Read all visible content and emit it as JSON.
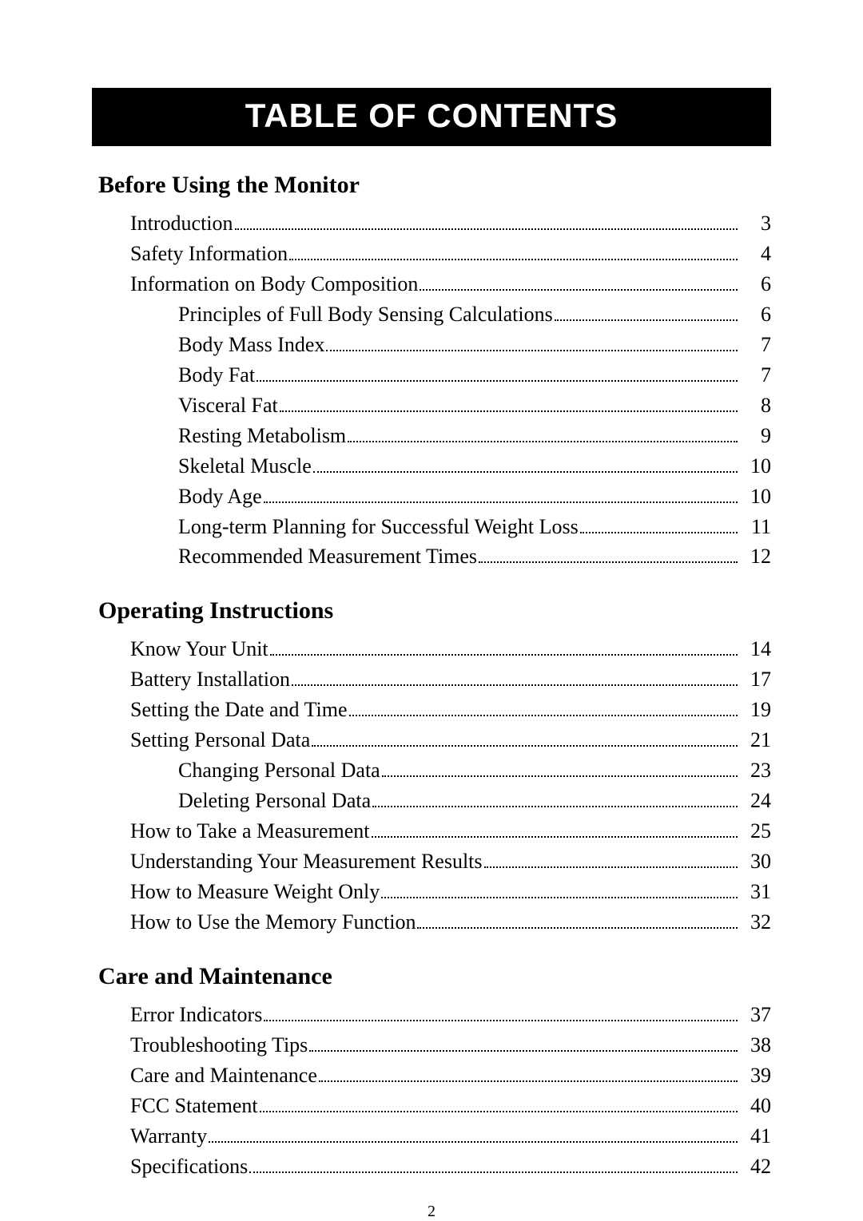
{
  "title": "TABLE OF CONTENTS",
  "page_number": "2",
  "sections": [
    {
      "heading": "Before Using the Monitor",
      "entries": [
        {
          "label": "Introduction",
          "page": "3",
          "indent": false
        },
        {
          "label": "Safety Information",
          "page": "4",
          "indent": false
        },
        {
          "label": "Information on Body Composition",
          "page": "6",
          "indent": false
        },
        {
          "label": "Principles of Full Body Sensing Calculations",
          "page": "6",
          "indent": true
        },
        {
          "label": "Body Mass Index",
          "page": "7",
          "indent": true
        },
        {
          "label": "Body Fat",
          "page": "7",
          "indent": true
        },
        {
          "label": "Visceral Fat",
          "page": "8",
          "indent": true
        },
        {
          "label": "Resting Metabolism",
          "page": "9",
          "indent": true
        },
        {
          "label": "Skeletal Muscle",
          "page": "10",
          "indent": true
        },
        {
          "label": "Body Age",
          "page": "10",
          "indent": true
        },
        {
          "label": "Long-term Planning for Successful Weight Loss",
          "page": "11",
          "indent": true
        },
        {
          "label": "Recommended Measurement Times",
          "page": "12",
          "indent": true
        }
      ]
    },
    {
      "heading": "Operating Instructions",
      "entries": [
        {
          "label": "Know Your Unit",
          "page": "14",
          "indent": false
        },
        {
          "label": "Battery Installation",
          "page": "17",
          "indent": false
        },
        {
          "label": "Setting the Date and Time",
          "page": "19",
          "indent": false
        },
        {
          "label": "Setting Personal Data",
          "page": "21",
          "indent": false
        },
        {
          "label": "Changing Personal Data",
          "page": "23",
          "indent": true
        },
        {
          "label": "Deleting Personal Data",
          "page": "24",
          "indent": true
        },
        {
          "label": "How to Take a Measurement",
          "page": "25",
          "indent": false
        },
        {
          "label": "Understanding Your Measurement Results",
          "page": "30",
          "indent": false
        },
        {
          "label": "How to Measure Weight Only",
          "page": "31",
          "indent": false
        },
        {
          "label": "How to Use the Memory Function",
          "page": "32",
          "indent": false
        }
      ]
    },
    {
      "heading": "Care and Maintenance",
      "entries": [
        {
          "label": "Error Indicators",
          "page": "37",
          "indent": false
        },
        {
          "label": "Troubleshooting Tips",
          "page": "38",
          "indent": false
        },
        {
          "label": "Care and Maintenance",
          "page": "39",
          "indent": false
        },
        {
          "label": "FCC Statement",
          "page": "40",
          "indent": false
        },
        {
          "label": "Warranty",
          "page": "41",
          "indent": false
        },
        {
          "label": "Specifications",
          "page": "42",
          "indent": false
        }
      ]
    }
  ]
}
